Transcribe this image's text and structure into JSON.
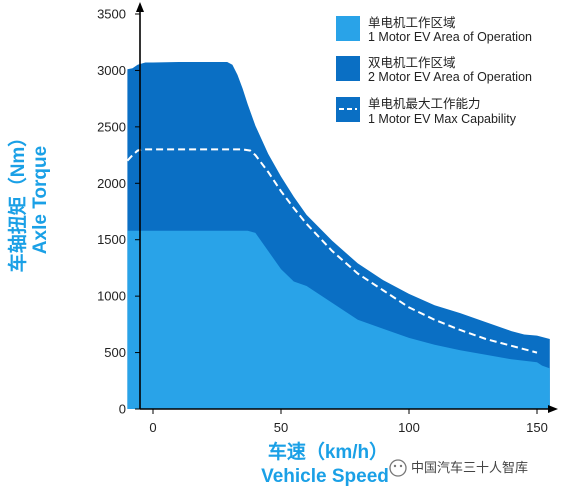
{
  "chart_data": {
    "type": "area",
    "x_axis": {
      "ticks": [
        0,
        50,
        100,
        150
      ],
      "range": [
        -10,
        157
      ]
    },
    "y_axis": {
      "ticks": [
        0,
        500,
        1000,
        1500,
        2000,
        2500,
        3000,
        3500
      ],
      "range": [
        0,
        3500
      ]
    },
    "xlabel_cn": "车速（km/h）",
    "xlabel_en": "Vehicle Speed",
    "ylabel_cn": "车轴扭矩（Nm）",
    "ylabel_en": "Axle Torque",
    "legend_placement": "top-right",
    "series": [
      {
        "name_cn": "单电机工作区域",
        "name_en": "1 Motor EV Area of Operation",
        "color": "#29a3e8",
        "x": [
          -10,
          0,
          10,
          20,
          30,
          37,
          40,
          45,
          50,
          55,
          60,
          70,
          80,
          90,
          100,
          110,
          120,
          130,
          140,
          150,
          152,
          155
        ],
        "y": [
          1580,
          1580,
          1580,
          1580,
          1580,
          1580,
          1560,
          1400,
          1240,
          1130,
          1090,
          940,
          790,
          710,
          630,
          570,
          520,
          480,
          440,
          415,
          385,
          360
        ]
      },
      {
        "name_cn": "双电机工作区域",
        "name_en": "2 Motor EV Area of Operation",
        "color": "#0a6fc4",
        "x": [
          -10,
          -8,
          -6,
          -3,
          0,
          10,
          20,
          25,
          29,
          31,
          33,
          35,
          37,
          40,
          45,
          50,
          55,
          60,
          70,
          80,
          90,
          100,
          110,
          120,
          130,
          140,
          145,
          150,
          155
        ],
        "y": [
          3010,
          3020,
          3050,
          3070,
          3070,
          3075,
          3075,
          3075,
          3075,
          3050,
          2960,
          2840,
          2700,
          2510,
          2260,
          2060,
          1880,
          1720,
          1490,
          1290,
          1140,
          1020,
          920,
          850,
          770,
          690,
          660,
          650,
          620
        ]
      },
      {
        "name_cn": "单电机最大工作能力",
        "name_en": "1 Motor EV Max Capability",
        "color": "#ffffff",
        "style": "dashed",
        "x": [
          -10,
          -8,
          -6,
          -4,
          0,
          10,
          20,
          30,
          35,
          38,
          40,
          45,
          50,
          55,
          60,
          70,
          80,
          90,
          100,
          110,
          120,
          130,
          140,
          150
        ],
        "y": [
          2200,
          2250,
          2290,
          2300,
          2300,
          2300,
          2300,
          2300,
          2300,
          2290,
          2250,
          2100,
          1930,
          1780,
          1640,
          1400,
          1200,
          1050,
          900,
          790,
          700,
          620,
          560,
          500
        ]
      }
    ]
  },
  "watermark": "中国汽车三十人智库"
}
